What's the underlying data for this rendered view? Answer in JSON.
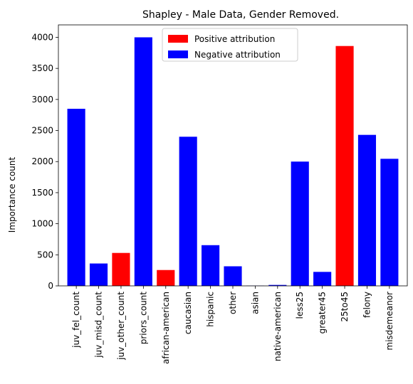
{
  "chart_data": {
    "type": "bar",
    "title": "Shapley - Male Data, Gender Removed.",
    "xlabel": "",
    "ylabel": "Importance count",
    "ylim": [
      0,
      4200
    ],
    "yticks": [
      0,
      500,
      1000,
      1500,
      2000,
      2500,
      3000,
      3500,
      4000
    ],
    "categories": [
      "juv_fel_count",
      "juv_misd_count",
      "juv_other_count",
      "priors_count",
      "african-american",
      "caucasian",
      "hispanic",
      "other",
      "asian",
      "native-american",
      "less25",
      "greater45",
      "25to45",
      "felony",
      "misdemeanor"
    ],
    "values": [
      2850,
      360,
      530,
      4000,
      255,
      2400,
      655,
      315,
      3,
      15,
      2000,
      225,
      3860,
      2430,
      2045
    ],
    "attribution": [
      "negative",
      "negative",
      "positive",
      "negative",
      "positive",
      "negative",
      "negative",
      "negative",
      "negative",
      "negative",
      "negative",
      "negative",
      "positive",
      "negative",
      "negative"
    ],
    "legend": {
      "placement": "top-center",
      "entries": [
        {
          "key": "positive",
          "label": "Positive attribution",
          "color": "#ff0000"
        },
        {
          "key": "negative",
          "label": "Negative attribution",
          "color": "#0000ff"
        }
      ]
    },
    "grid": false
  }
}
